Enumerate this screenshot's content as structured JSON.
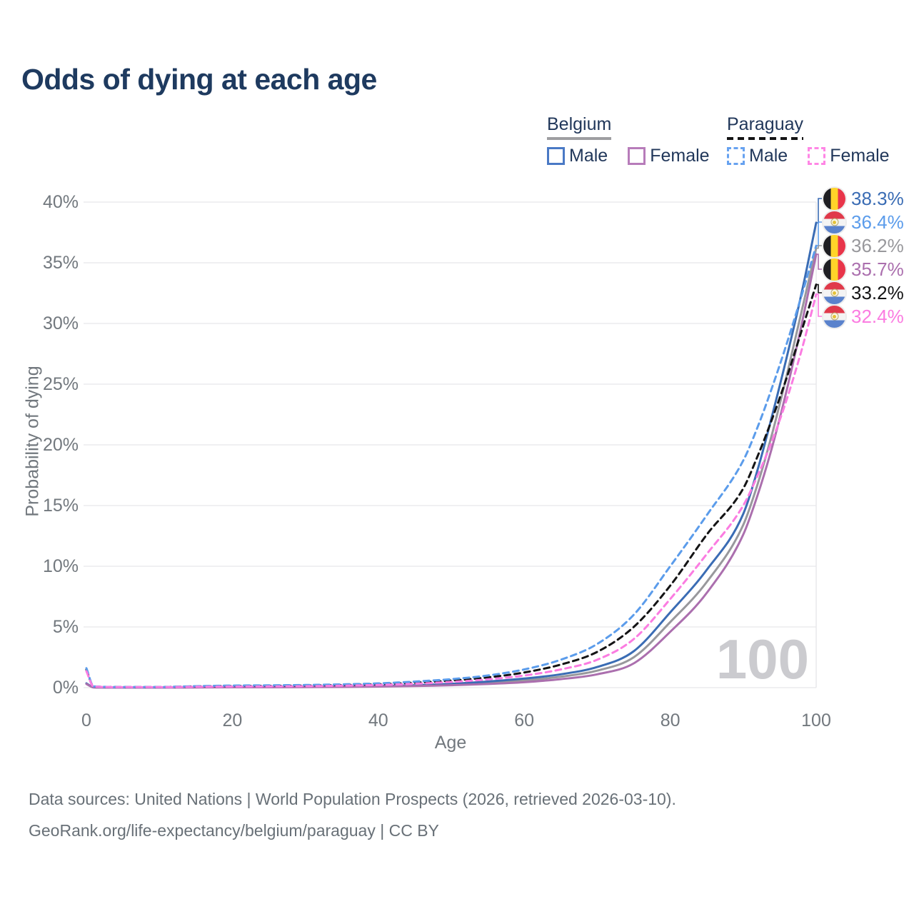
{
  "title": "Odds of dying at each age",
  "legend": {
    "belgium": {
      "country": "Belgium",
      "male": "Male",
      "female": "Female"
    },
    "paraguay": {
      "country": "Paraguay",
      "male": "Male",
      "female": "Female"
    }
  },
  "watermark": "100",
  "footer": {
    "line1": "Data sources: United Nations | World Population Prospects (2026, retrieved 2026-03-10).",
    "line2": "GeoRank.org/life-expectancy/belgium/paraguay | CC BY"
  },
  "colors": {
    "title_text": "#1e3a5f",
    "legend_text": "#21375a",
    "axis_text": "#72787e",
    "gridline": "#ececee",
    "watermark": "#cbcbcf",
    "belgium_underline": "#9e9ea1",
    "paraguay_underline": "#141415"
  },
  "chart_data": {
    "type": "line",
    "title": "Odds of dying at each age",
    "xlabel": "Age",
    "ylabel": "Probability of dying",
    "xlim": [
      0,
      100
    ],
    "ylim": [
      0,
      40
    ],
    "grid": "horizontal",
    "legend_position": "top-right",
    "x_ticks": {
      "values": [
        0,
        20,
        40,
        60,
        80,
        100
      ],
      "labels": [
        "0",
        "20",
        "40",
        "60",
        "80",
        "100"
      ]
    },
    "y_ticks": {
      "values": [
        0,
        5,
        10,
        15,
        20,
        25,
        30,
        35,
        40
      ],
      "labels": [
        "0%",
        "5%",
        "10%",
        "15%",
        "20%",
        "25%",
        "30%",
        "35%",
        "40%"
      ]
    },
    "ages": [
      0,
      1,
      5,
      10,
      15,
      20,
      25,
      30,
      35,
      40,
      45,
      50,
      55,
      60,
      65,
      70,
      75,
      80,
      85,
      90,
      92,
      94,
      96,
      98,
      100
    ],
    "series": [
      {
        "name": "Belgium Both sexes",
        "country": "Belgium",
        "sex": "both",
        "style": "solid",
        "color": "#98989c",
        "flag": "belgium-flag-icon",
        "end_label": "36.2%",
        "values": [
          0.33,
          0.025,
          0.01,
          0.01,
          0.025,
          0.045,
          0.045,
          0.055,
          0.075,
          0.11,
          0.17,
          0.26,
          0.4,
          0.6,
          0.9,
          1.4,
          2.5,
          5.4,
          8.7,
          13.4,
          16.8,
          21.0,
          25.8,
          31.0,
          36.2
        ]
      },
      {
        "name": "Belgium Male",
        "country": "Belgium",
        "sex": "male",
        "style": "solid",
        "color": "#3a6cb4",
        "flag": "belgium-flag-icon",
        "end_label": "38.3%",
        "values": [
          0.35,
          0.03,
          0.01,
          0.01,
          0.03,
          0.06,
          0.06,
          0.07,
          0.09,
          0.13,
          0.2,
          0.32,
          0.5,
          0.75,
          1.1,
          1.7,
          3.0,
          6.2,
          9.7,
          14.3,
          18.0,
          22.5,
          27.3,
          32.5,
          38.3
        ]
      },
      {
        "name": "Belgium Female",
        "country": "Belgium",
        "sex": "female",
        "style": "solid",
        "color": "#ab6fae",
        "flag": "belgium-flag-icon",
        "end_label": "35.7%",
        "values": [
          0.3,
          0.02,
          0.01,
          0.01,
          0.02,
          0.03,
          0.03,
          0.04,
          0.06,
          0.09,
          0.13,
          0.2,
          0.3,
          0.45,
          0.7,
          1.1,
          2.0,
          4.6,
          7.8,
          12.6,
          15.9,
          19.9,
          24.6,
          29.9,
          35.7
        ]
      },
      {
        "name": "Paraguay Both sexes",
        "country": "Paraguay",
        "sex": "both",
        "style": "dashed",
        "color": "#141415",
        "flag": "paraguay-flag-icon",
        "end_label": "33.2%",
        "values": [
          1.48,
          0.095,
          0.045,
          0.045,
          0.1,
          0.13,
          0.15,
          0.17,
          0.21,
          0.28,
          0.41,
          0.58,
          0.84,
          1.25,
          1.9,
          2.95,
          5.0,
          8.4,
          12.6,
          16.4,
          19.1,
          22.2,
          25.6,
          29.4,
          33.2
        ]
      },
      {
        "name": "Paraguay Male",
        "country": "Paraguay",
        "sex": "male",
        "style": "dashed",
        "color": "#5b9ceb",
        "flag": "paraguay-flag-icon",
        "end_label": "36.4%",
        "values": [
          1.6,
          0.1,
          0.05,
          0.05,
          0.12,
          0.17,
          0.19,
          0.22,
          0.27,
          0.35,
          0.5,
          0.7,
          1.0,
          1.5,
          2.3,
          3.6,
          6.0,
          10.0,
          14.2,
          18.7,
          21.5,
          24.8,
          28.4,
          32.3,
          36.4
        ]
      },
      {
        "name": "Paraguay Female",
        "country": "Paraguay",
        "sex": "female",
        "style": "dashed",
        "color": "#fb7ce1",
        "flag": "paraguay-flag-icon",
        "end_label": "32.4%",
        "values": [
          1.35,
          0.09,
          0.04,
          0.04,
          0.07,
          0.09,
          0.1,
          0.12,
          0.16,
          0.22,
          0.32,
          0.47,
          0.68,
          1.0,
          1.5,
          2.3,
          4.0,
          7.3,
          11.0,
          15.0,
          17.5,
          20.4,
          23.8,
          27.8,
          32.4
        ]
      }
    ]
  }
}
